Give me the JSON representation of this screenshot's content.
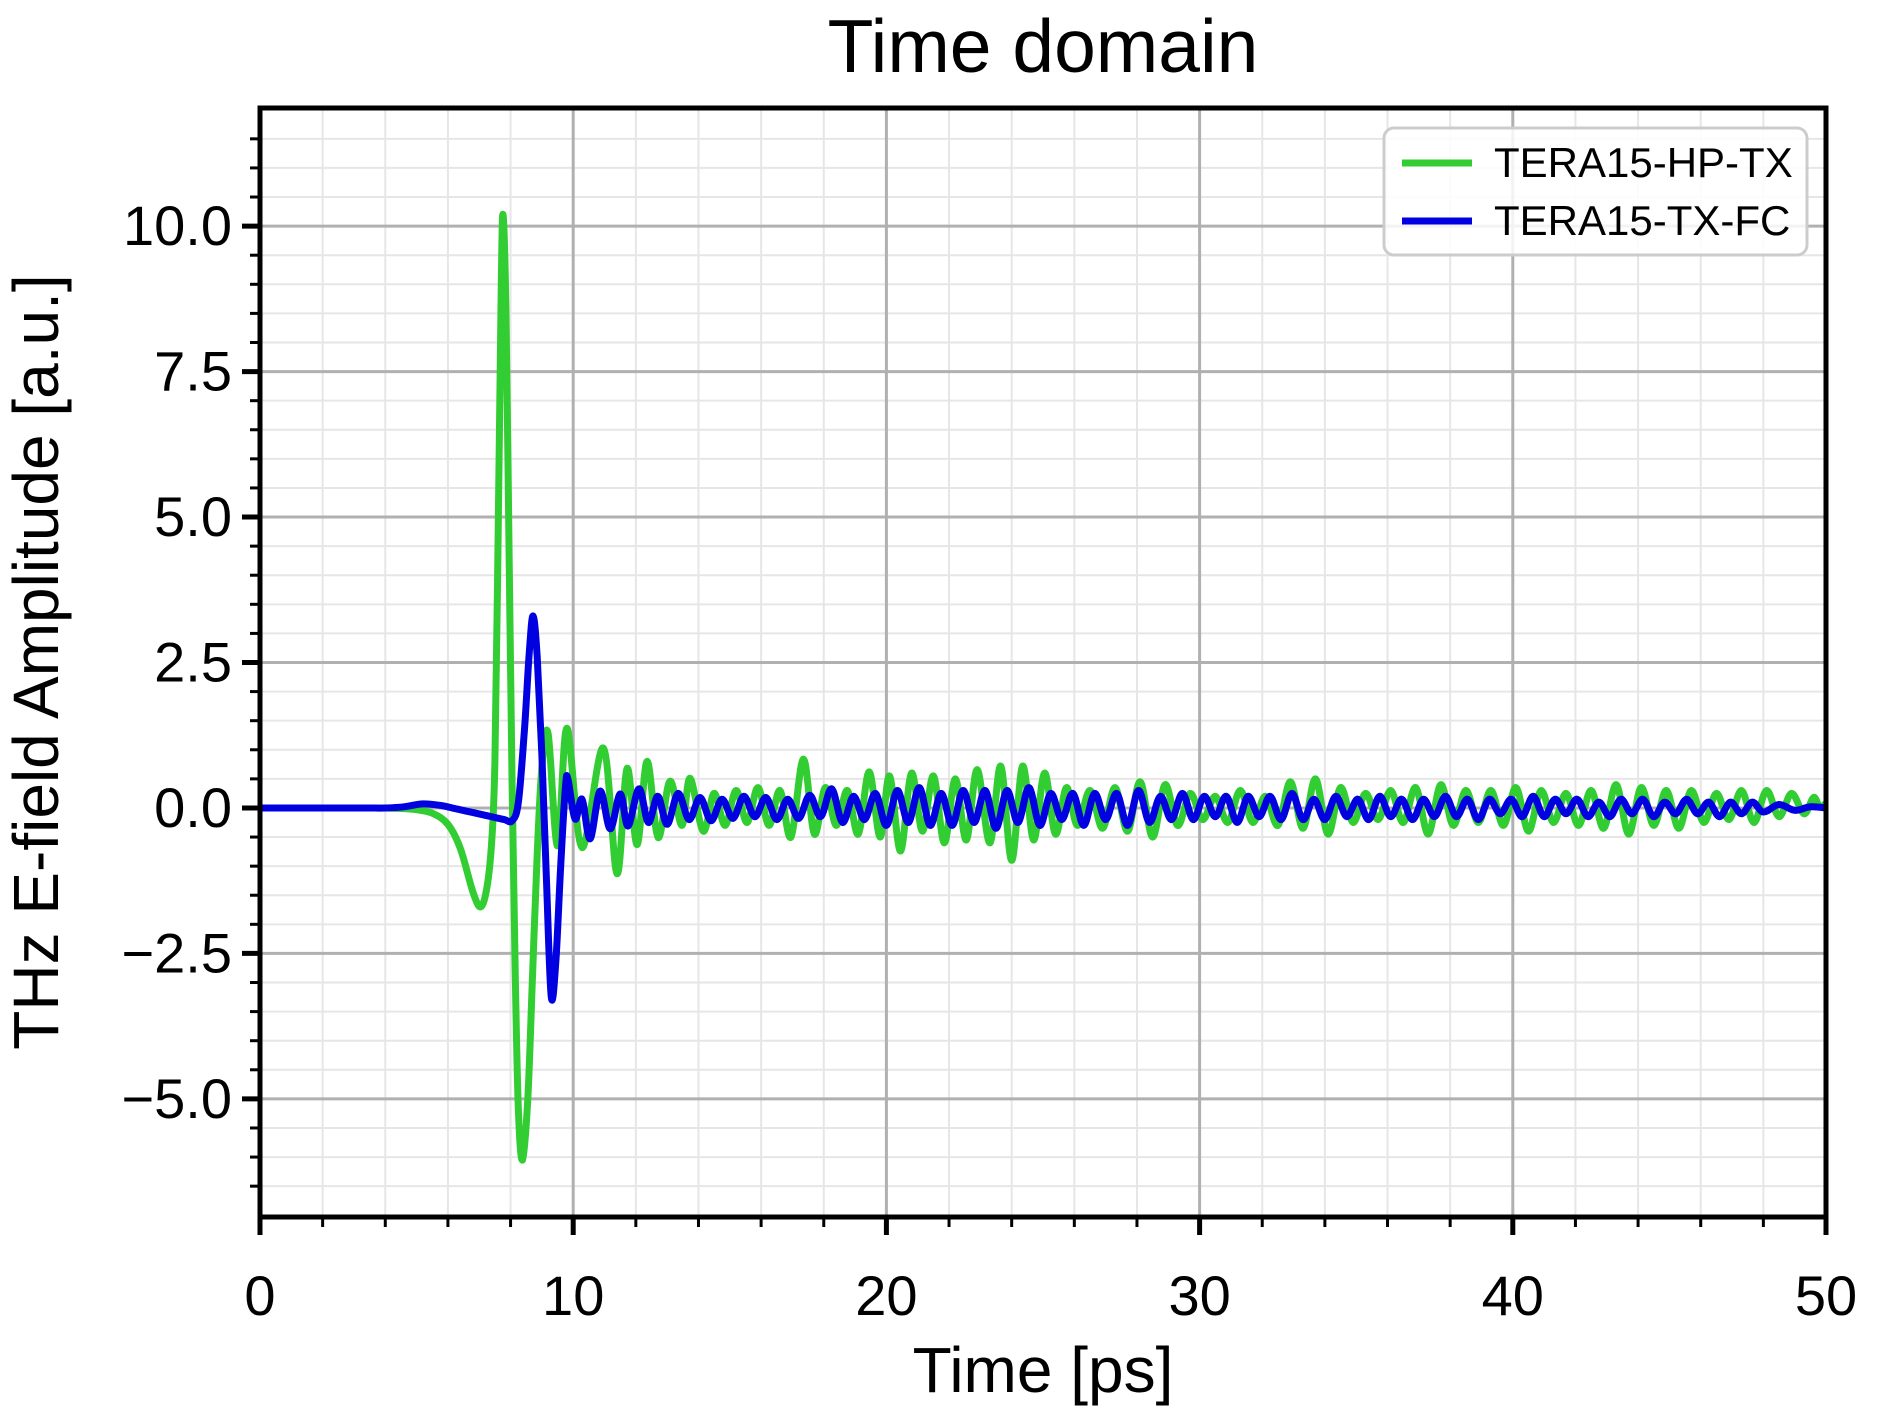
{
  "figure": {
    "title": "Time domain",
    "background": "#ffffff"
  },
  "chart_data": {
    "type": "line",
    "title": "Time domain",
    "xlabel": "Time [ps]",
    "ylabel": "THz E-field Amplitude [a.u.]",
    "xlim": [
      0,
      50
    ],
    "ylim": [
      -7.03,
      12.03
    ],
    "grid": "major+minor",
    "grid_major_color": "#b0b0b0",
    "grid_minor_color": "#e6e6e6",
    "spine_color": "#000000",
    "legend_position": "upper right",
    "xticks": {
      "major": [
        0,
        10,
        20,
        30,
        40,
        50
      ],
      "labels": [
        "0",
        "10",
        "20",
        "30",
        "40",
        "50"
      ],
      "minor_step": 2
    },
    "yticks": {
      "major": [
        -5,
        -2.5,
        0,
        2.5,
        5,
        7.5,
        10
      ],
      "labels": [
        "−5.0",
        "−2.5",
        "0.0",
        "2.5",
        "5.0",
        "7.5",
        "10.0"
      ],
      "minor_step": 0.5
    },
    "series": [
      {
        "name": "TERA15-HP-TX",
        "color": "#32cd32",
        "points": [
          [
            0,
            0
          ],
          [
            0.5,
            0
          ],
          [
            1,
            0
          ],
          [
            1.5,
            0
          ],
          [
            2,
            0
          ],
          [
            2.5,
            0
          ],
          [
            3,
            0
          ],
          [
            3.5,
            0
          ],
          [
            4,
            0
          ],
          [
            4.5,
            -0.01
          ],
          [
            5,
            -0.03
          ],
          [
            5.5,
            -0.09
          ],
          [
            6,
            -0.28
          ],
          [
            6.4,
            -0.7
          ],
          [
            6.8,
            -1.45
          ],
          [
            7.05,
            -1.7
          ],
          [
            7.25,
            -1.35
          ],
          [
            7.4,
            -0.55
          ],
          [
            7.5,
            0.8
          ],
          [
            7.6,
            4.5
          ],
          [
            7.7,
            8.9
          ],
          [
            7.76,
            10.2
          ],
          [
            7.85,
            8.6
          ],
          [
            7.95,
            4.5
          ],
          [
            8.05,
            0.4
          ],
          [
            8.15,
            -2.9
          ],
          [
            8.25,
            -5.2
          ],
          [
            8.38,
            -6.05
          ],
          [
            8.55,
            -5.0
          ],
          [
            8.7,
            -2.9
          ],
          [
            8.85,
            -0.8
          ],
          [
            9.0,
            0.7
          ],
          [
            9.2,
            1.28
          ],
          [
            9.5,
            -0.65
          ],
          [
            9.8,
            1.37
          ],
          [
            10.28,
            -0.68
          ],
          [
            10.96,
            1.03
          ],
          [
            11.4,
            -1.13
          ],
          [
            11.72,
            0.68
          ],
          [
            12.04,
            -0.63
          ],
          [
            12.36,
            0.8
          ],
          [
            12.71,
            -0.51
          ],
          [
            13.09,
            0.46
          ],
          [
            13.47,
            -0.3
          ],
          [
            13.73,
            0.51
          ],
          [
            14.15,
            -0.4
          ],
          [
            14.5,
            0.25
          ],
          [
            14.85,
            -0.3
          ],
          [
            15.2,
            0.3
          ],
          [
            15.55,
            -0.25
          ],
          [
            15.9,
            0.35
          ],
          [
            16.25,
            -0.3
          ],
          [
            16.6,
            0.3
          ],
          [
            16.95,
            -0.5
          ],
          [
            17.35,
            0.84
          ],
          [
            17.7,
            -0.45
          ],
          [
            18.05,
            0.35
          ],
          [
            18.4,
            -0.3
          ],
          [
            18.75,
            0.3
          ],
          [
            19.1,
            -0.45
          ],
          [
            19.45,
            0.62
          ],
          [
            19.8,
            -0.5
          ],
          [
            20.1,
            0.55
          ],
          [
            20.45,
            -0.74
          ],
          [
            20.8,
            0.6
          ],
          [
            21.15,
            -0.4
          ],
          [
            21.5,
            0.55
          ],
          [
            21.85,
            -0.6
          ],
          [
            22.2,
            0.5
          ],
          [
            22.55,
            -0.55
          ],
          [
            22.9,
            0.66
          ],
          [
            23.3,
            -0.6
          ],
          [
            23.65,
            0.72
          ],
          [
            24.0,
            -0.9
          ],
          [
            24.35,
            0.72
          ],
          [
            24.7,
            -0.55
          ],
          [
            25.05,
            0.6
          ],
          [
            25.4,
            -0.45
          ],
          [
            25.75,
            0.35
          ],
          [
            26.1,
            -0.3
          ],
          [
            26.5,
            0.3
          ],
          [
            26.9,
            -0.35
          ],
          [
            27.3,
            0.35
          ],
          [
            27.7,
            -0.4
          ],
          [
            28.1,
            0.45
          ],
          [
            28.5,
            -0.5
          ],
          [
            28.9,
            0.4
          ],
          [
            29.3,
            -0.3
          ],
          [
            29.7,
            0.25
          ],
          [
            30.1,
            -0.2
          ],
          [
            30.5,
            0.2
          ],
          [
            30.9,
            -0.25
          ],
          [
            31.3,
            0.3
          ],
          [
            31.7,
            -0.25
          ],
          [
            32.1,
            0.2
          ],
          [
            32.5,
            -0.3
          ],
          [
            32.9,
            0.45
          ],
          [
            33.3,
            -0.35
          ],
          [
            33.7,
            0.5
          ],
          [
            34.1,
            -0.45
          ],
          [
            34.5,
            0.35
          ],
          [
            34.9,
            -0.25
          ],
          [
            35.3,
            0.25
          ],
          [
            35.7,
            -0.2
          ],
          [
            36.1,
            0.3
          ],
          [
            36.5,
            -0.25
          ],
          [
            36.9,
            0.35
          ],
          [
            37.3,
            -0.45
          ],
          [
            37.7,
            0.4
          ],
          [
            38.1,
            -0.3
          ],
          [
            38.5,
            0.3
          ],
          [
            38.9,
            -0.25
          ],
          [
            39.3,
            0.3
          ],
          [
            39.7,
            -0.3
          ],
          [
            40.1,
            0.35
          ],
          [
            40.5,
            -0.4
          ],
          [
            40.9,
            0.3
          ],
          [
            41.3,
            -0.25
          ],
          [
            41.7,
            0.25
          ],
          [
            42.1,
            -0.3
          ],
          [
            42.5,
            0.3
          ],
          [
            42.9,
            -0.35
          ],
          [
            43.3,
            0.4
          ],
          [
            43.7,
            -0.45
          ],
          [
            44.1,
            0.35
          ],
          [
            44.5,
            -0.3
          ],
          [
            44.9,
            0.3
          ],
          [
            45.3,
            -0.35
          ],
          [
            45.7,
            0.3
          ],
          [
            46.1,
            -0.25
          ],
          [
            46.5,
            0.25
          ],
          [
            46.9,
            -0.2
          ],
          [
            47.3,
            0.3
          ],
          [
            47.7,
            -0.25
          ],
          [
            48.1,
            0.3
          ],
          [
            48.5,
            -0.15
          ],
          [
            48.9,
            0.25
          ],
          [
            49.3,
            -0.1
          ],
          [
            49.6,
            0.18
          ],
          [
            49.8,
            0.02
          ],
          [
            50,
            0.08
          ]
        ]
      },
      {
        "name": "TERA15-TX-FC",
        "color": "#0000e0",
        "points": [
          [
            0,
            0
          ],
          [
            0.5,
            0
          ],
          [
            1,
            0
          ],
          [
            1.5,
            0
          ],
          [
            2,
            0
          ],
          [
            2.5,
            0
          ],
          [
            3,
            0
          ],
          [
            3.5,
            0
          ],
          [
            4,
            0
          ],
          [
            4.6,
            0.02
          ],
          [
            5.2,
            0.07
          ],
          [
            5.8,
            0.04
          ],
          [
            6.3,
            -0.02
          ],
          [
            6.8,
            -0.08
          ],
          [
            7.3,
            -0.14
          ],
          [
            7.8,
            -0.2
          ],
          [
            8.05,
            -0.22
          ],
          [
            8.25,
            0.1
          ],
          [
            8.45,
            1.4
          ],
          [
            8.6,
            2.7
          ],
          [
            8.72,
            3.3
          ],
          [
            8.85,
            2.6
          ],
          [
            9.0,
            0.9
          ],
          [
            9.15,
            -1.3
          ],
          [
            9.3,
            -3.25
          ],
          [
            9.45,
            -2.6
          ],
          [
            9.6,
            -1.0
          ],
          [
            9.75,
            0.35
          ],
          [
            9.83,
            0.5
          ],
          [
            10.06,
            -0.19
          ],
          [
            10.28,
            0.15
          ],
          [
            10.54,
            -0.53
          ],
          [
            10.86,
            0.29
          ],
          [
            11.18,
            -0.36
          ],
          [
            11.5,
            0.24
          ],
          [
            11.75,
            -0.31
          ],
          [
            12.1,
            0.33
          ],
          [
            12.4,
            -0.25
          ],
          [
            12.7,
            0.2
          ],
          [
            13.0,
            -0.28
          ],
          [
            13.35,
            0.25
          ],
          [
            13.7,
            -0.2
          ],
          [
            14.05,
            0.18
          ],
          [
            14.4,
            -0.22
          ],
          [
            14.75,
            0.15
          ],
          [
            15.1,
            -0.18
          ],
          [
            15.45,
            0.2
          ],
          [
            15.8,
            -0.15
          ],
          [
            16.15,
            0.18
          ],
          [
            16.5,
            -0.2
          ],
          [
            16.85,
            0.15
          ],
          [
            17.2,
            -0.18
          ],
          [
            17.55,
            0.22
          ],
          [
            17.9,
            -0.15
          ],
          [
            18.25,
            0.33
          ],
          [
            18.6,
            -0.25
          ],
          [
            18.95,
            0.2
          ],
          [
            19.3,
            -0.2
          ],
          [
            19.65,
            0.25
          ],
          [
            20.0,
            -0.3
          ],
          [
            20.35,
            0.3
          ],
          [
            20.7,
            -0.25
          ],
          [
            21.05,
            0.35
          ],
          [
            21.4,
            -0.3
          ],
          [
            21.75,
            0.25
          ],
          [
            22.1,
            -0.3
          ],
          [
            22.45,
            0.3
          ],
          [
            22.8,
            -0.25
          ],
          [
            23.15,
            0.3
          ],
          [
            23.5,
            -0.35
          ],
          [
            23.85,
            0.3
          ],
          [
            24.2,
            -0.25
          ],
          [
            24.55,
            0.35
          ],
          [
            24.9,
            -0.3
          ],
          [
            25.25,
            0.25
          ],
          [
            25.6,
            -0.2
          ],
          [
            25.95,
            0.25
          ],
          [
            26.3,
            -0.3
          ],
          [
            26.65,
            0.25
          ],
          [
            27.0,
            -0.2
          ],
          [
            27.35,
            0.25
          ],
          [
            27.7,
            -0.3
          ],
          [
            28.05,
            0.3
          ],
          [
            28.4,
            -0.25
          ],
          [
            28.75,
            0.2
          ],
          [
            29.1,
            -0.2
          ],
          [
            29.45,
            0.25
          ],
          [
            29.8,
            -0.2
          ],
          [
            30.15,
            0.2
          ],
          [
            30.5,
            -0.15
          ],
          [
            30.85,
            0.2
          ],
          [
            31.2,
            -0.25
          ],
          [
            31.55,
            0.2
          ],
          [
            31.9,
            -0.15
          ],
          [
            32.25,
            0.2
          ],
          [
            32.6,
            -0.2
          ],
          [
            32.95,
            0.25
          ],
          [
            33.3,
            -0.2
          ],
          [
            33.65,
            0.15
          ],
          [
            34.0,
            -0.2
          ],
          [
            34.35,
            0.2
          ],
          [
            34.7,
            -0.15
          ],
          [
            35.05,
            0.15
          ],
          [
            35.4,
            -0.2
          ],
          [
            35.75,
            0.2
          ],
          [
            36.1,
            -0.15
          ],
          [
            36.45,
            0.15
          ],
          [
            36.8,
            -0.2
          ],
          [
            37.15,
            0.15
          ],
          [
            37.5,
            -0.15
          ],
          [
            37.85,
            0.2
          ],
          [
            38.2,
            -0.15
          ],
          [
            38.55,
            0.15
          ],
          [
            38.9,
            -0.2
          ],
          [
            39.25,
            0.15
          ],
          [
            39.6,
            -0.1
          ],
          [
            39.95,
            0.15
          ],
          [
            40.3,
            -0.15
          ],
          [
            40.65,
            0.2
          ],
          [
            41.0,
            -0.15
          ],
          [
            41.35,
            0.15
          ],
          [
            41.7,
            -0.1
          ],
          [
            42.05,
            0.15
          ],
          [
            42.4,
            -0.15
          ],
          [
            42.75,
            0.1
          ],
          [
            43.1,
            -0.15
          ],
          [
            43.45,
            0.15
          ],
          [
            43.8,
            -0.1
          ],
          [
            44.15,
            0.15
          ],
          [
            44.5,
            -0.15
          ],
          [
            44.85,
            0.1
          ],
          [
            45.2,
            -0.1
          ],
          [
            45.55,
            0.15
          ],
          [
            45.9,
            -0.1
          ],
          [
            46.25,
            0.1
          ],
          [
            46.6,
            -0.15
          ],
          [
            46.95,
            0.1
          ],
          [
            47.3,
            -0.1
          ],
          [
            47.65,
            0.1
          ],
          [
            48.0,
            -0.07
          ],
          [
            48.5,
            0.06
          ],
          [
            49.0,
            -0.04
          ],
          [
            49.5,
            0.02
          ],
          [
            50,
            0
          ]
        ]
      }
    ]
  },
  "legend": {
    "entries": [
      {
        "label": "TERA15-HP-TX",
        "color": "#32cd32"
      },
      {
        "label": "TERA15-TX-FC",
        "color": "#0000e0"
      }
    ]
  }
}
